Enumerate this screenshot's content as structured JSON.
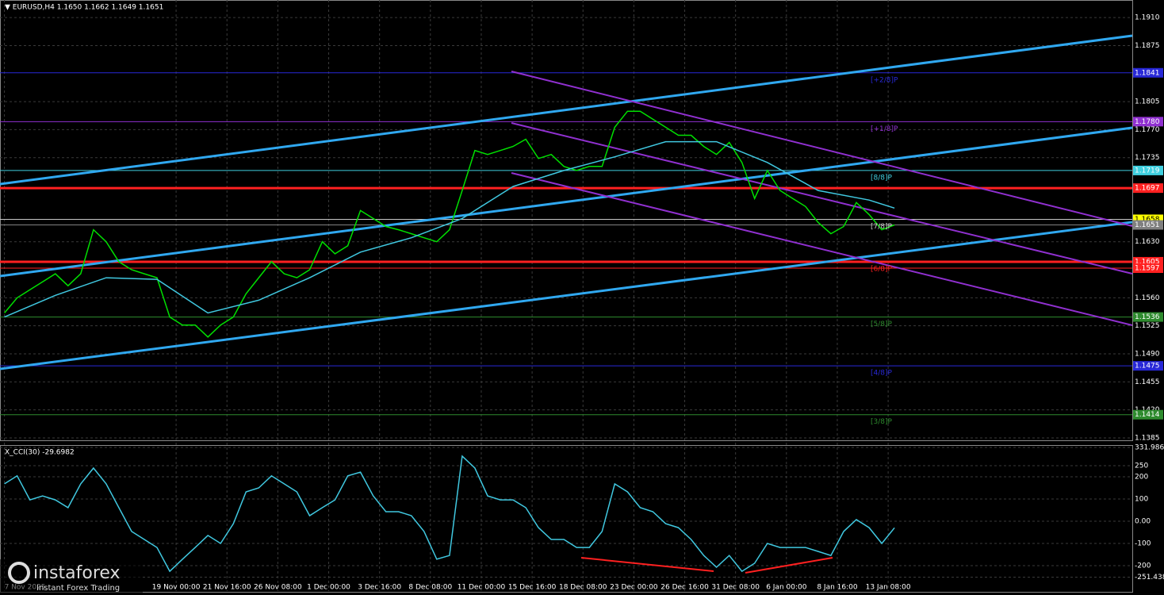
{
  "header": {
    "symbol": "▼ EURUSD,H4 1.1650 1.1662 1.1649 1.1651"
  },
  "logo": {
    "name": "instaforex",
    "tagline": "Instant Forex Trading"
  },
  "chart_data": [
    {
      "type": "line",
      "x": [
        0,
        4,
        8,
        12,
        16,
        20,
        24,
        28,
        32,
        36,
        40,
        44,
        48,
        52,
        56,
        60,
        64,
        68,
        72,
        76,
        80,
        84,
        88,
        92,
        96,
        100,
        104,
        108,
        112,
        116,
        120,
        124,
        128,
        132,
        136,
        140,
        144,
        148,
        152,
        156,
        160,
        164,
        168,
        172,
        176,
        180,
        184,
        188,
        192,
        196,
        200,
        204,
        208,
        212,
        216,
        220,
        224,
        228,
        232,
        236,
        240,
        244,
        248,
        252,
        256,
        260,
        264,
        268,
        272,
        276,
        280
      ],
      "xlim": [
        -1.4,
        354.8
      ],
      "ylim": [
        1.1382,
        1.1924
      ],
      "series": [
        {
          "name": "EURUSD",
          "color": "#00e000",
          "values": [
            1.1541,
            1.156,
            1.157,
            1.158,
            1.159,
            1.1575,
            1.159,
            1.1645,
            1.163,
            1.1605,
            1.1595,
            1.159,
            1.1585,
            1.1536,
            1.1526,
            1.1526,
            1.1511,
            1.1526,
            1.1536,
            1.1565,
            1.1585,
            1.1605,
            1.159,
            1.1585,
            1.1595,
            1.163,
            1.1615,
            1.1625,
            1.1669,
            1.1659,
            1.1649,
            1.1645,
            1.164,
            1.1635,
            1.163,
            1.1645,
            1.1694,
            1.1744,
            1.1739,
            1.1744,
            1.1749,
            1.1758,
            1.1734,
            1.1739,
            1.1724,
            1.1719,
            1.1724,
            1.1724,
            1.1773,
            1.1793,
            1.1793,
            1.1783,
            1.1773,
            1.1763,
            1.1763,
            1.1749,
            1.1739,
            1.1754,
            1.1729,
            1.1684,
            1.1719,
            1.1694,
            1.1684,
            1.1674,
            1.1654,
            1.164,
            1.1649,
            1.1679,
            1.1664,
            1.1645,
            1.1651
          ]
        },
        {
          "color": "#40c8e0",
          "x": [
            0,
            16,
            32,
            48,
            64,
            80,
            96,
            112,
            128,
            144,
            160,
            176,
            192,
            208,
            224,
            240,
            256,
            272,
            280
          ],
          "values": [
            1.1536,
            1.1563,
            1.1585,
            1.1583,
            1.1541,
            1.1557,
            1.1585,
            1.1617,
            1.1635,
            1.1659,
            1.1699,
            1.1719,
            1.1736,
            1.1755,
            1.1755,
            1.1729,
            1.1694,
            1.1682,
            1.1672
          ]
        }
      ],
      "xticks": [
        {
          "value": 0,
          "label": "7 Nov 2025"
        },
        {
          "value": 54,
          "label": "19 Nov 00:00"
        },
        {
          "value": 70,
          "label": "21 Nov 16:00"
        },
        {
          "value": 86,
          "label": "26 Nov 08:00"
        },
        {
          "value": 102,
          "label": "1 Dec 00:00"
        },
        {
          "value": 118,
          "label": "3 Dec 16:00"
        },
        {
          "value": 134,
          "label": "8 Dec 08:00"
        },
        {
          "value": 150,
          "label": "11 Dec 00:00"
        },
        {
          "value": 166,
          "label": "15 Dec 16:00"
        },
        {
          "value": 182,
          "label": "18 Dec 08:00"
        },
        {
          "value": 198,
          "label": "23 Dec 00:00"
        },
        {
          "value": 214,
          "label": "26 Dec 16:00"
        },
        {
          "value": 230,
          "label": "31 Dec 08:00"
        },
        {
          "value": 246,
          "label": "6 Jan 00:00"
        },
        {
          "value": 262,
          "label": "8 Jan 16:00"
        },
        {
          "value": 278,
          "label": "13 Jan 08:00"
        }
      ],
      "yticks": [
        {
          "value": 1.191,
          "label": "1.1910"
        },
        1.1875,
        1.1805,
        {
          "value": 1.177,
          "label": "1.1770"
        },
        1.1735,
        {
          "value": 1.163,
          "label": "1.1630"
        },
        {
          "value": 1.156,
          "label": "1.1560"
        },
        1.1525,
        {
          "value": 1.149,
          "label": "1.1490"
        },
        1.1455,
        {
          "value": 1.142,
          "label": "1.1420"
        },
        1.1385
      ],
      "levels": [
        {
          "value": 1.1841,
          "tag": "1.1841",
          "label": "[+2/8]P",
          "color": "#2828d8"
        },
        {
          "value": 1.178,
          "tag": "1.1780",
          "label": "[+1/8]P",
          "color": "#9030d0"
        },
        {
          "value": 1.1719,
          "tag": "1.1719",
          "label": "[8/8]P",
          "color": "#40d0e0"
        },
        {
          "value": 1.1697,
          "tag": "1.1697",
          "color": "#ff2020",
          "width": 3
        },
        {
          "value": 1.1658,
          "tag": "1.1658",
          "label": "[7/8]P",
          "color": "#c8c8c8",
          "tag_color": "#ffff00"
        },
        {
          "value": 1.1651,
          "tag": "1.1651",
          "color": "#808080"
        },
        {
          "value": 1.1605,
          "tag": "1.1605",
          "label": "[6/8]P",
          "color": "#ff2020",
          "width": 3
        },
        {
          "value": 1.1597,
          "tag": "1.1597",
          "color": "#ff2020"
        },
        {
          "value": 1.1536,
          "tag": "1.1536",
          "label": "[5/8]P",
          "color": "#2e8b2e"
        },
        {
          "value": 1.1475,
          "tag": "1.1475",
          "label": "[4/8]P",
          "color": "#2828d8"
        },
        {
          "value": 1.1414,
          "tag": "1.1414",
          "label": "[3/8]P",
          "color": "#2e8b2e"
        }
      ]
    },
    {
      "type": "line",
      "title": "X_CCI(30) -29.6982",
      "x": [
        0,
        4,
        8,
        12,
        16,
        20,
        24,
        28,
        32,
        36,
        40,
        44,
        48,
        52,
        56,
        60,
        64,
        68,
        72,
        76,
        80,
        84,
        88,
        92,
        96,
        100,
        104,
        108,
        112,
        116,
        120,
        124,
        128,
        132,
        136,
        140,
        144,
        148,
        152,
        156,
        160,
        164,
        168,
        172,
        176,
        180,
        184,
        188,
        192,
        196,
        200,
        204,
        208,
        212,
        216,
        220,
        224,
        228,
        232,
        236,
        240,
        244,
        248,
        252,
        256,
        260,
        264,
        268,
        272,
        276,
        280
      ],
      "xlim": [
        -1.4,
        354.8
      ],
      "ylim": [
        -314,
        339
      ],
      "series": [
        {
          "color": "#40c8e0",
          "values": [
            168,
            204,
            96,
            114,
            96,
            61,
            168,
            239,
            168,
            61,
            -46,
            -82,
            -118,
            -225,
            -171,
            -118,
            -64,
            -100,
            -11,
            132,
            150,
            204,
            168,
            132,
            25,
            61,
            96,
            204,
            221,
            114,
            43,
            43,
            25,
            -46,
            -171,
            -154,
            293,
            239,
            114,
            96,
            96,
            61,
            -29,
            -82,
            -82,
            -118,
            -118,
            -46,
            168,
            132,
            61,
            43,
            -11,
            -29,
            -82,
            -154,
            -207,
            -154,
            -225,
            -189,
            -100,
            -118,
            -118,
            -118,
            -136,
            -154,
            -46,
            7,
            -29,
            -100,
            -29.6982
          ]
        }
      ],
      "yticks": [
        331.986,
        250,
        200,
        100,
        {
          "value": 0,
          "label": "0.00"
        },
        -100,
        -200,
        -251.438
      ]
    }
  ]
}
